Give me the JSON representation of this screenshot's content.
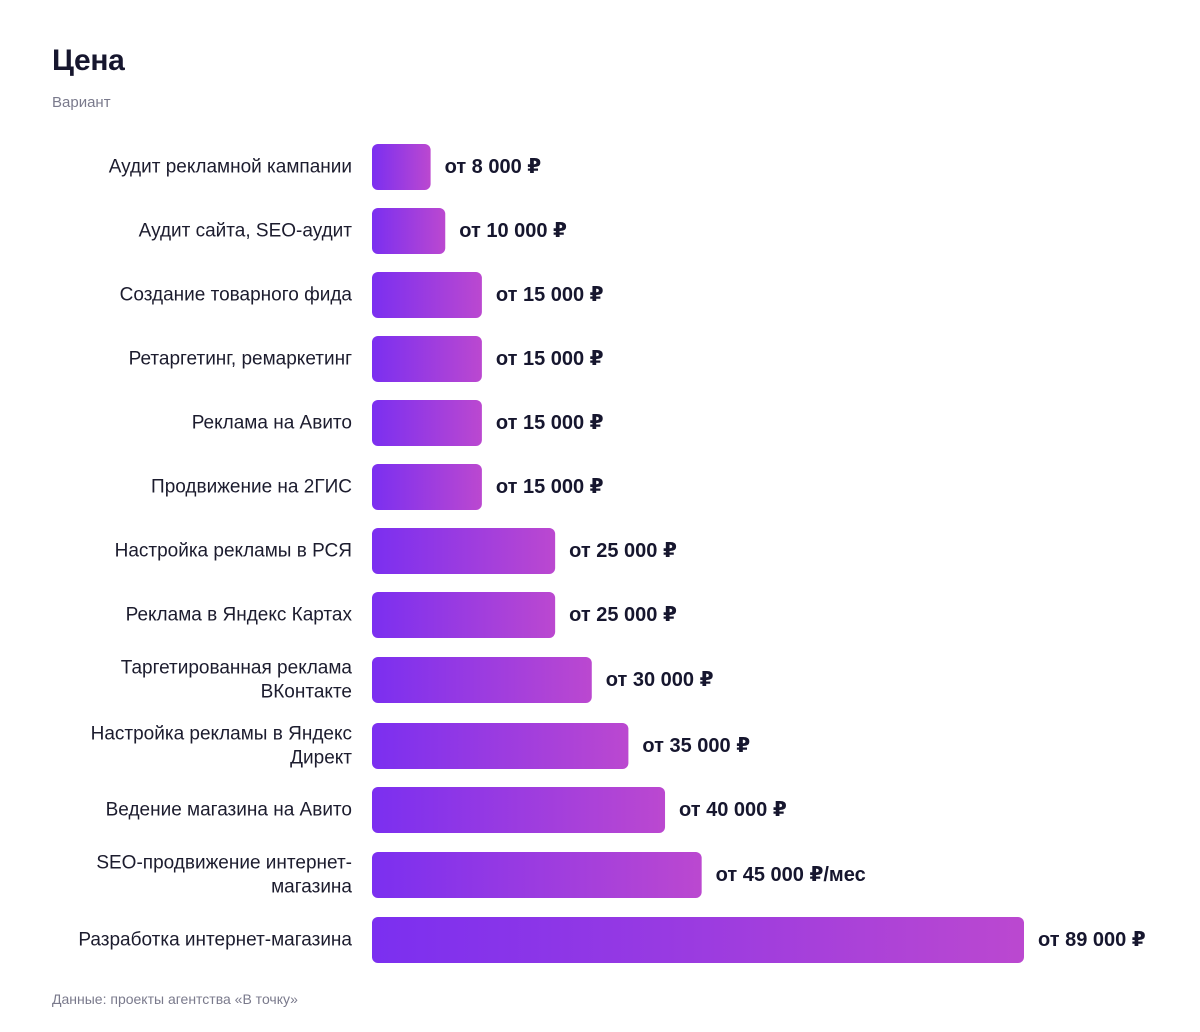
{
  "title": "Цена",
  "subtitle": "Вариант",
  "source": "Данные: проекты агентства «В точку»",
  "colors": {
    "bar_start": "#7b2ff0",
    "bar_end": "#bb48d0",
    "text": "#16162e",
    "muted": "#7a7a8c"
  },
  "chart_data": {
    "type": "bar",
    "orientation": "horizontal",
    "title": "Цена",
    "subtitle": "Вариант",
    "categories": [
      "Аудит рекламной кампании",
      "Аудит сайта, SEO-аудит",
      "Создание товарного фида",
      "Ретаргетинг, ремаркетинг",
      "Реклама на Авито",
      "Продвижение на 2ГИС",
      "Настройка рекламы в РСЯ",
      "Реклама в Яндекс Картах",
      "Таргетированная реклама ВКонтакте",
      "Настройка рекламы в Яндекс Директ",
      "Ведение магазина на Авито",
      "SEO-продвижение интернет-магазина",
      "Разработка интернет-магазина"
    ],
    "category_lines": [
      [
        "Аудит рекламной кампании"
      ],
      [
        "Аудит сайта, SEO-аудит"
      ],
      [
        "Создание товарного фида"
      ],
      [
        "Ретаргетинг, ремаркетинг"
      ],
      [
        "Реклама на Авито"
      ],
      [
        "Продвижение на 2ГИС"
      ],
      [
        "Настройка рекламы в РСЯ"
      ],
      [
        "Реклама в Яндекс Картах"
      ],
      [
        "Таргетированная реклама",
        "ВКонтакте"
      ],
      [
        "Настройка рекламы в Яндекс",
        "Директ"
      ],
      [
        "Ведение магазина на Авито"
      ],
      [
        "SEO-продвижение интернет-",
        "магазина"
      ],
      [
        "Разработка интернет-магазина"
      ]
    ],
    "values": [
      8000,
      10000,
      15000,
      15000,
      15000,
      15000,
      25000,
      25000,
      30000,
      35000,
      40000,
      45000,
      89000
    ],
    "value_labels": [
      "от 8 000 ₽",
      "от 10 000 ₽",
      "от 15 000 ₽",
      "от 15 000 ₽",
      "от 15 000 ₽",
      "от 15 000 ₽",
      "от 25 000 ₽",
      "от 25 000 ₽",
      "от 30 000 ₽",
      "от 35 000 ₽",
      "от 40 000 ₽",
      "от 45 000 ₽/мес",
      "от 89 000 ₽"
    ],
    "xlim": [
      0,
      89000
    ],
    "grid": false,
    "legend": "none"
  }
}
